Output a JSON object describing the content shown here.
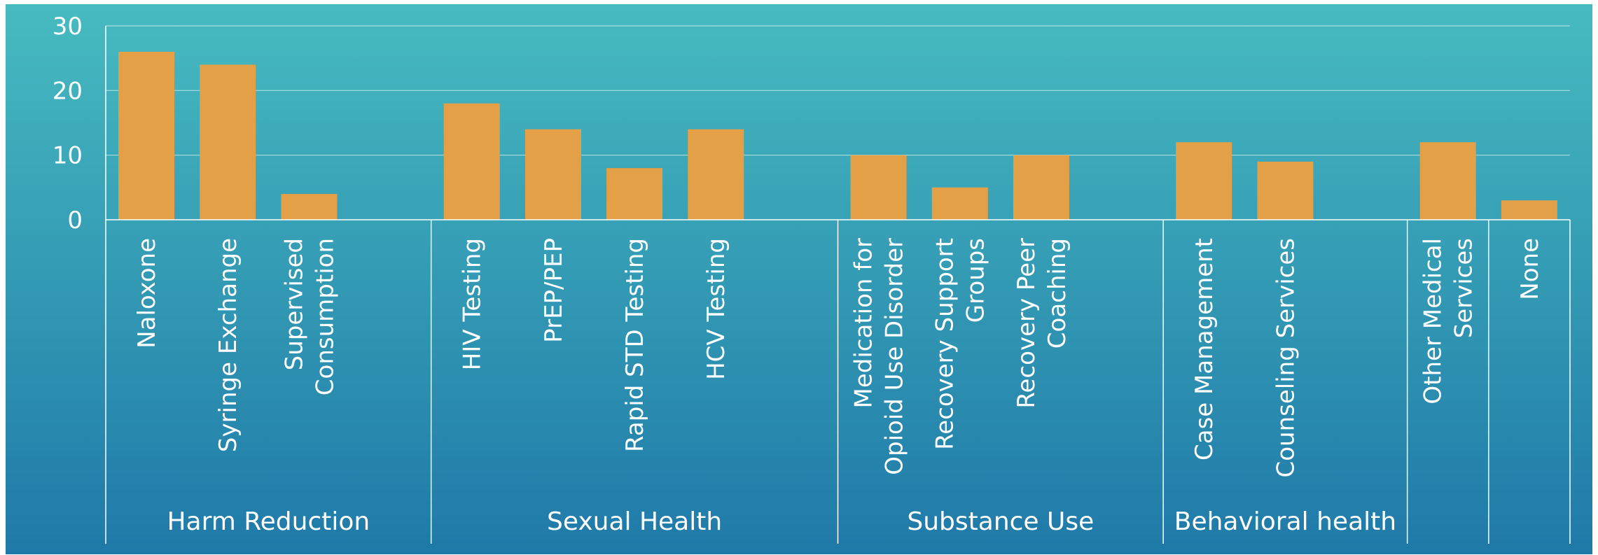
{
  "chart_data": {
    "type": "bar",
    "title": "",
    "xlabel": "",
    "ylabel": "",
    "ylim": [
      0,
      30
    ],
    "yticks": [
      0,
      10,
      20,
      30
    ],
    "grid": true,
    "legend": "none",
    "categories": [
      "Naloxone",
      "Syringe Exchange",
      "Supervised Consumption",
      "",
      "HIV Testing",
      "PrEP/PEP",
      "Rapid STD Testing",
      "HCV Testing",
      "",
      "Medication for Opioid Use Disorder",
      "Recovery Support Groups",
      "Recovery Peer Coaching",
      "",
      "Case Management",
      "Counseling Services",
      "",
      "Other Medical Services",
      "None"
    ],
    "values": [
      26,
      24,
      4,
      null,
      18,
      14,
      8,
      14,
      null,
      10,
      5,
      10,
      null,
      12,
      9,
      null,
      12,
      3
    ],
    "category_label_lines": [
      [
        "Naloxone"
      ],
      [
        "Syringe Exchange"
      ],
      [
        "Supervised",
        "Consumption"
      ],
      [],
      [
        "HIV Testing"
      ],
      [
        "PrEP/PEP"
      ],
      [
        "Rapid STD Testing"
      ],
      [
        "HCV Testing"
      ],
      [],
      [
        "Medication for",
        "Opioid Use Disorder"
      ],
      [
        "Recovery Support",
        "Groups"
      ],
      [
        "Recovery Peer",
        "Coaching"
      ],
      [],
      [
        "Case Management"
      ],
      [
        "Counseling Services"
      ],
      [],
      [
        "Other Medical",
        "Services"
      ],
      [
        "None"
      ]
    ],
    "groups": [
      {
        "label": "Harm Reduction",
        "start": 0,
        "end": 3
      },
      {
        "label": "Sexual Health",
        "start": 4,
        "end": 8
      },
      {
        "label": "Substance Use",
        "start": 9,
        "end": 12
      },
      {
        "label": "Behavioral health",
        "start": 13,
        "end": 15
      },
      {
        "label": "",
        "start": 16,
        "end": 16
      },
      {
        "label": "",
        "start": 17,
        "end": 17
      }
    ]
  },
  "colors": {
    "bar": "#E3A046",
    "background_top": "#47BBC0",
    "background_bottom": "#1F79A8",
    "gridline": "#A9DDE0",
    "axis": "#FFFFFF",
    "text": "#FFFFFF"
  }
}
